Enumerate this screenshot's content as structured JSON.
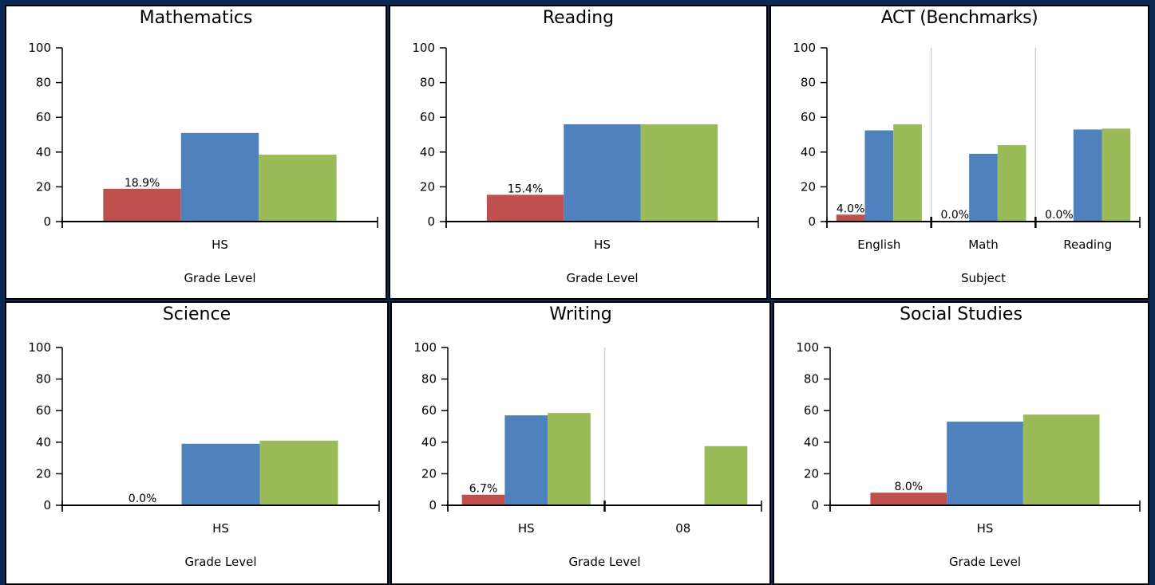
{
  "colors": {
    "series1": "#c0504d",
    "series2": "#4f81bd",
    "series3": "#9bbb59",
    "grid": "#d0d0d0",
    "axis": "#000000",
    "background": "#0a2a55"
  },
  "chart_data": [
    {
      "type": "bar",
      "title": "Mathematics",
      "xlabel": "Grade Level",
      "ylabel": "",
      "ylim": [
        0,
        100
      ],
      "yticks": [
        0,
        20,
        40,
        60,
        80,
        100
      ],
      "grid": true,
      "legend": "none",
      "categories": [
        "HS"
      ],
      "series": [
        {
          "values": [
            18.9
          ],
          "labels": [
            "18.9%"
          ]
        },
        {
          "values": [
            51
          ]
        },
        {
          "values": [
            38.5
          ]
        }
      ]
    },
    {
      "type": "bar",
      "title": "Reading",
      "xlabel": "Grade Level",
      "ylabel": "",
      "ylim": [
        0,
        100
      ],
      "yticks": [
        0,
        20,
        40,
        60,
        80,
        100
      ],
      "grid": true,
      "legend": "none",
      "categories": [
        "HS"
      ],
      "series": [
        {
          "values": [
            15.4
          ],
          "labels": [
            "15.4%"
          ]
        },
        {
          "values": [
            56
          ]
        },
        {
          "values": [
            56
          ]
        }
      ]
    },
    {
      "type": "bar",
      "title": "ACT (Benchmarks)",
      "xlabel": "Subject",
      "ylabel": "",
      "ylim": [
        0,
        100
      ],
      "yticks": [
        0,
        20,
        40,
        60,
        80,
        100
      ],
      "grid": true,
      "legend": "none",
      "categories": [
        "English",
        "Math",
        "Reading"
      ],
      "series": [
        {
          "values": [
            4.0,
            0,
            0
          ],
          "labels": [
            "4.0%",
            "0.0%",
            "0.0%"
          ]
        },
        {
          "values": [
            52.5,
            39,
            53
          ]
        },
        {
          "values": [
            56,
            44,
            53.5
          ]
        }
      ]
    },
    {
      "type": "bar",
      "title": "Science",
      "xlabel": "Grade Level",
      "ylabel": "",
      "ylim": [
        0,
        100
      ],
      "yticks": [
        0,
        20,
        40,
        60,
        80,
        100
      ],
      "grid": true,
      "legend": "none",
      "categories": [
        "HS"
      ],
      "series": [
        {
          "values": [
            0
          ],
          "labels": [
            "0.0%"
          ]
        },
        {
          "values": [
            39
          ]
        },
        {
          "values": [
            41
          ]
        }
      ]
    },
    {
      "type": "bar",
      "title": "Writing",
      "xlabel": "Grade Level",
      "ylabel": "",
      "ylim": [
        0,
        100
      ],
      "yticks": [
        0,
        20,
        40,
        60,
        80,
        100
      ],
      "grid": true,
      "legend": "none",
      "categories": [
        "HS",
        "08"
      ],
      "series": [
        {
          "values": [
            6.7,
            null
          ],
          "labels": [
            "6.7%",
            ""
          ]
        },
        {
          "values": [
            57,
            null
          ]
        },
        {
          "values": [
            58.5,
            37.5
          ]
        }
      ]
    },
    {
      "type": "bar",
      "title": "Social Studies",
      "xlabel": "Grade Level",
      "ylabel": "",
      "ylim": [
        0,
        100
      ],
      "yticks": [
        0,
        20,
        40,
        60,
        80,
        100
      ],
      "grid": true,
      "legend": "none",
      "categories": [
        "HS"
      ],
      "series": [
        {
          "values": [
            8.0
          ],
          "labels": [
            "8.0%"
          ]
        },
        {
          "values": [
            53
          ]
        },
        {
          "values": [
            57.5
          ]
        }
      ]
    }
  ]
}
